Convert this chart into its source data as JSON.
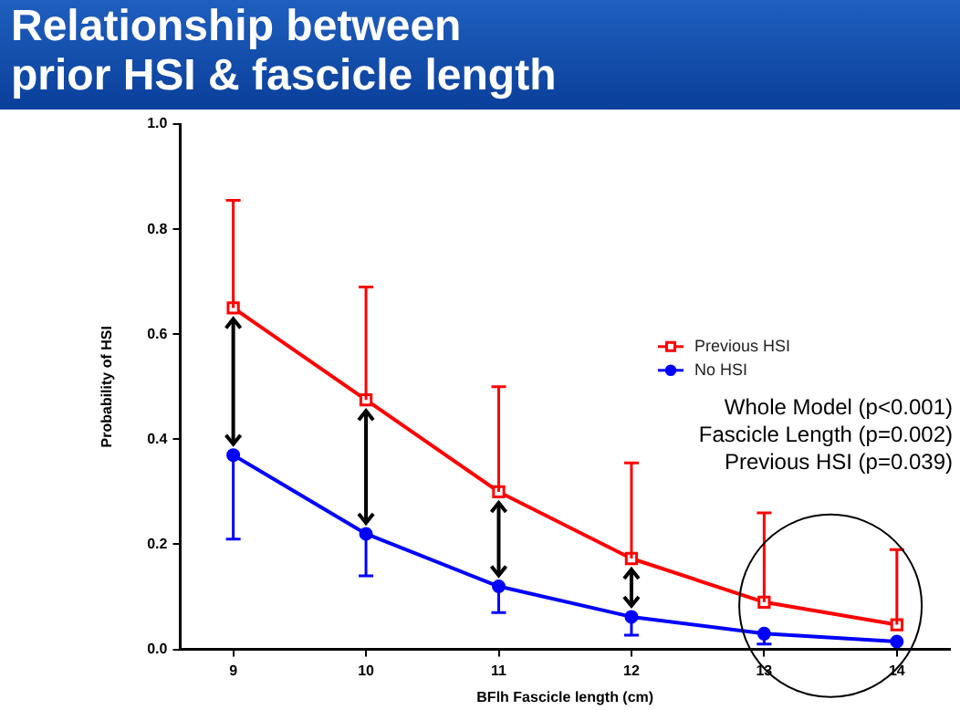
{
  "chart_data": {
    "type": "line",
    "title": "Relationship between\nprior HSI & fascicle length",
    "xlabel": "BFlh Fascicle length (cm)",
    "ylabel": "Probability of HSI",
    "x": [
      9,
      10,
      11,
      12,
      13,
      14
    ],
    "xlim": [
      8.6,
      14.4
    ],
    "xticks": [
      9,
      10,
      11,
      12,
      13,
      14
    ],
    "ylim": [
      0,
      1
    ],
    "yticks": [
      {
        "value": 0,
        "label": "0.0"
      },
      {
        "value": 0.2,
        "label": "0.2"
      },
      {
        "value": 0.4,
        "label": "0.4"
      },
      {
        "value": 0.6,
        "label": "0.6"
      },
      {
        "value": 0.8,
        "label": "0.8"
      },
      {
        "value": 1,
        "label": "1.0"
      }
    ],
    "series": [
      {
        "name": "Previous HSI",
        "color": "#ff0000",
        "marker": "square",
        "values": [
          0.65,
          0.475,
          0.3,
          0.173,
          0.09,
          0.047
        ],
        "errors": [
          [
            0.65,
            0.855
          ],
          [
            0.475,
            0.69
          ],
          [
            0.3,
            0.5
          ],
          [
            0.173,
            0.355
          ],
          [
            0.09,
            0.26
          ],
          [
            0.047,
            0.19
          ]
        ]
      },
      {
        "name": "No HSI",
        "color": "#0000ff",
        "marker": "circle",
        "values": [
          0.37,
          0.22,
          0.12,
          0.062,
          0.03,
          0.015
        ],
        "errors": [
          [
            0.21,
            0.37
          ],
          [
            0.14,
            0.22
          ],
          [
            0.07,
            0.12
          ],
          [
            0.027,
            0.062
          ],
          [
            0.01,
            0.03
          ],
          null
        ]
      }
    ],
    "annotations": [
      "Whole Model (p<0.001)",
      "Fascicle Length (p=0.002)",
      "Previous HSI (p=0.039)"
    ],
    "legend": "right",
    "grid": false,
    "line_style": "solid"
  }
}
